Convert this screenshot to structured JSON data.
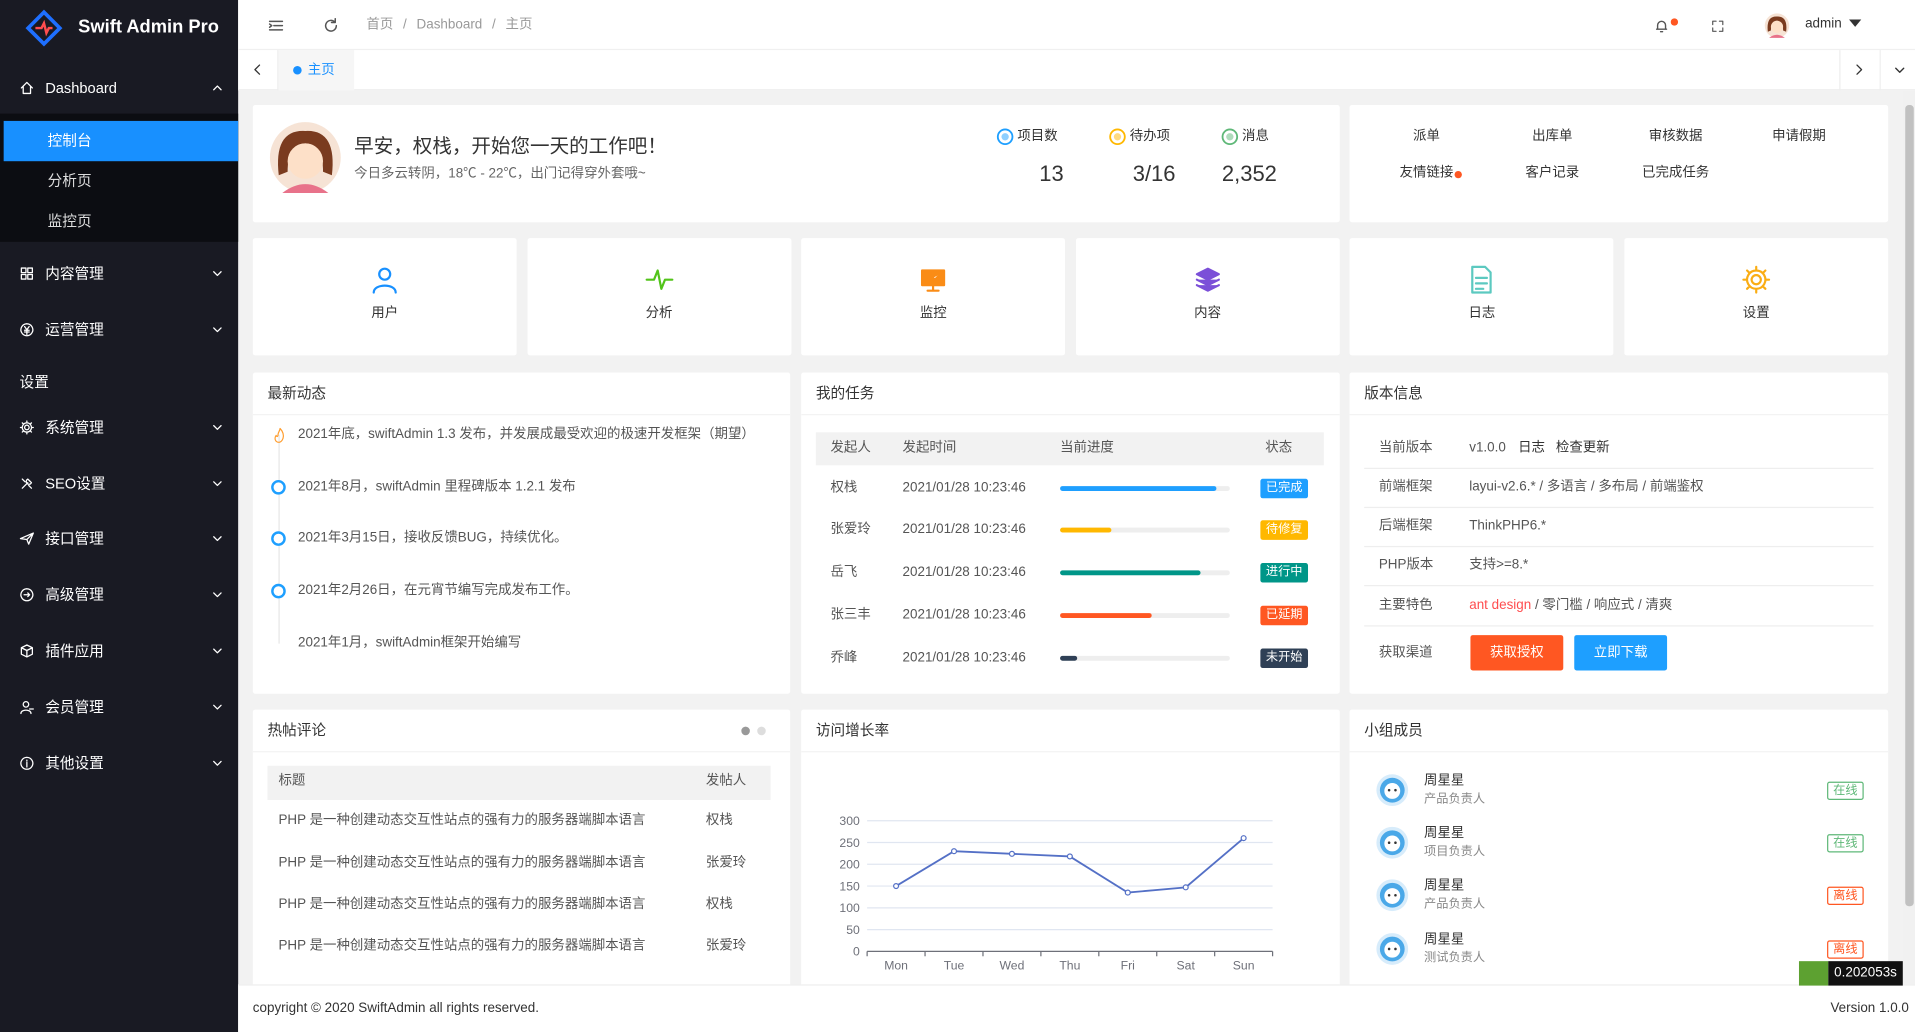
{
  "sidebar": {
    "brand": "Swift Admin Pro",
    "items": [
      {
        "label": "Dashboard",
        "children": [
          "控制台",
          "分析页",
          "监控页"
        ]
      },
      {
        "label": "内容管理"
      },
      {
        "label": "运营管理"
      },
      {
        "heading": "设置"
      },
      {
        "label": "系统管理"
      },
      {
        "label": "SEO设置"
      },
      {
        "label": "接口管理"
      },
      {
        "label": "高级管理"
      },
      {
        "label": "插件应用"
      },
      {
        "label": "会员管理"
      },
      {
        "label": "其他设置"
      }
    ]
  },
  "header": {
    "breadcrumb": [
      "首页",
      "Dashboard",
      "主页"
    ],
    "separator": "/",
    "user": "admin"
  },
  "tabs": [
    "主页"
  ],
  "welcome": {
    "greeting": "早安，权栈，开始您一天的工作吧！",
    "weather": "今日多云转阴，18℃ - 22℃，出门记得穿外套哦~",
    "stats": [
      {
        "label": "项目数",
        "value": 13,
        "color": "#1e9fff"
      },
      {
        "label": "待办项",
        "value": "3/16",
        "color": "#ffb800"
      },
      {
        "label": "消息",
        "value": "2,352",
        "color": "#5fb878"
      }
    ]
  },
  "quick_links": [
    "派单",
    "出库单",
    "审核数据",
    "申请假期",
    "友情链接",
    "客户记录",
    "已完成任务"
  ],
  "shortcuts": [
    {
      "label": "用户",
      "color": "#1890ff"
    },
    {
      "label": "分析",
      "color": "#52c41a"
    },
    {
      "label": "监控",
      "color": "#fa8c16"
    },
    {
      "label": "内容",
      "color": "#7b4fd8"
    },
    {
      "label": "日志",
      "color": "#5cc9c0"
    },
    {
      "label": "设置",
      "color": "#faad14"
    }
  ],
  "activity": {
    "title": "最新动态",
    "items": [
      "2021年底，swiftAdmin 1.3 发布，并发展成最受欢迎的极速开发框架（期望）",
      "2021年8月，swiftAdmin 里程碑版本 1.2.1 发布",
      "2021年3月15日，接收反馈BUG，持续优化。",
      "2021年2月26日，在元宵节编写完成发布工作。",
      "2021年1月，swiftAdmin框架开始编写"
    ]
  },
  "tasks": {
    "title": "我的任务",
    "columns": [
      "发起人",
      "发起时间",
      "当前进度",
      "状态"
    ],
    "rows": [
      {
        "name": "权栈",
        "time": "2021/01/28 10:23:46",
        "progress": 92,
        "status": "已完成",
        "color": "#1e9fff"
      },
      {
        "name": "张爱玲",
        "time": "2021/01/28 10:23:46",
        "progress": 30,
        "status": "待修复",
        "color": "#ffb800"
      },
      {
        "name": "岳飞",
        "time": "2021/01/28 10:23:46",
        "progress": 83,
        "status": "进行中",
        "color": "#009688"
      },
      {
        "name": "张三丰",
        "time": "2021/01/28 10:23:46",
        "progress": 54,
        "status": "已延期",
        "color": "#ff5722"
      },
      {
        "name": "乔峰",
        "time": "2021/01/28 10:23:46",
        "progress": 10,
        "status": "未开始",
        "color": "#2f4056"
      }
    ]
  },
  "version": {
    "title": "版本信息",
    "rows": [
      {
        "label": "当前版本",
        "value": "v1.0.0",
        "links": [
          "日志",
          "检查更新"
        ]
      },
      {
        "label": "前端框架",
        "value": "layui-v2.6.* / 多语言 / 多布局 / 前端鉴权"
      },
      {
        "label": "后端框架",
        "value": "ThinkPHP6.*"
      },
      {
        "label": "PHP版本",
        "value": "支持>=8.*"
      },
      {
        "label": "主要特色",
        "highlight": "ant design",
        "value": " / 零门槛 / 响应式 / 清爽"
      },
      {
        "label": "获取渠道",
        "buttons": [
          {
            "label": "获取授权",
            "color": "#ff5722"
          },
          {
            "label": "立即下载",
            "color": "#1e9fff"
          }
        ]
      }
    ]
  },
  "hot_posts": {
    "title": "热帖评论",
    "columns": [
      "标题",
      "发帖人"
    ],
    "rows": [
      [
        "PHP 是一种创建动态交互性站点的强有力的服务器端脚本语言",
        "权栈"
      ],
      [
        "PHP 是一种创建动态交互性站点的强有力的服务器端脚本语言",
        "张爱玲"
      ],
      [
        "PHP 是一种创建动态交互性站点的强有力的服务器端脚本语言",
        "权栈"
      ],
      [
        "PHP 是一种创建动态交互性站点的强有力的服务器端脚本语言",
        "张爱玲"
      ]
    ]
  },
  "chart_data": {
    "type": "line",
    "title": "访问增长率",
    "categories": [
      "Mon",
      "Tue",
      "Wed",
      "Thu",
      "Fri",
      "Sat",
      "Sun"
    ],
    "series": [
      {
        "color": "#5470c6",
        "values": [
          150,
          230,
          224,
          218,
          135,
          147,
          260
        ]
      }
    ],
    "ylim": [
      0,
      300
    ],
    "yticks": [
      0,
      50,
      100,
      150,
      200,
      250,
      300
    ],
    "grid": true
  },
  "team": {
    "title": "小组成员",
    "members": [
      {
        "name": "周星星",
        "role": "产品负责人",
        "status": "在线",
        "color": "#5fb878"
      },
      {
        "name": "周星星",
        "role": "项目负责人",
        "status": "在线",
        "color": "#5fb878"
      },
      {
        "name": "周星星",
        "role": "产品负责人",
        "status": "离线",
        "color": "#ff5722"
      },
      {
        "name": "周星星",
        "role": "测试负责人",
        "status": "离线",
        "color": "#ff5722"
      }
    ]
  },
  "footer": {
    "copyright": "copyright © 2020 SwiftAdmin all rights reserved.",
    "version": "Version 1.0.0"
  },
  "timer": "0.202053s"
}
